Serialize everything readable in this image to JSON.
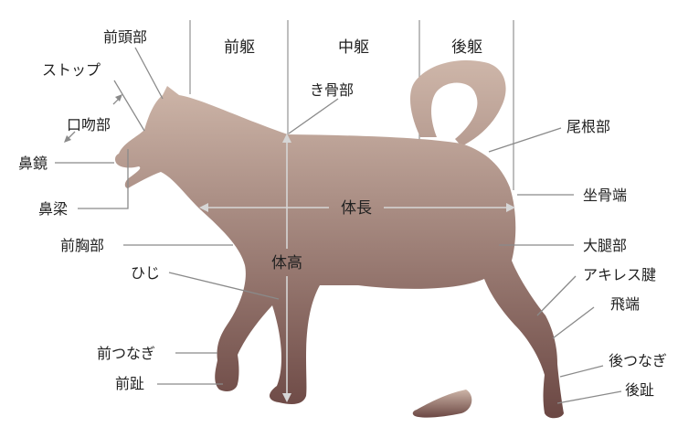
{
  "colors": {
    "silhouette_top": "#cdb5a8",
    "silhouette_bottom": "#6b4743",
    "line": "#8a8a8a",
    "text": "#222222"
  },
  "sections": {
    "fore": "前躯",
    "middle": "中躯",
    "hind": "後躯"
  },
  "measures": {
    "length": "体長",
    "height": "体高"
  },
  "labels": {
    "forehead": "前頭部",
    "stop": "ストップ",
    "muzzle": "口吻部",
    "nose": "鼻鏡",
    "nasal_bridge": "鼻梁",
    "withers": "き骨部",
    "tail_root": "尾根部",
    "ischium": "坐骨端",
    "chest": "前胸部",
    "thigh": "大腿部",
    "elbow": "ひじ",
    "achilles": "アキレス腱",
    "hock": "飛端",
    "front_pastern": "前つなぎ",
    "front_toe": "前趾",
    "rear_pastern": "後つなぎ",
    "rear_toe": "後趾"
  }
}
